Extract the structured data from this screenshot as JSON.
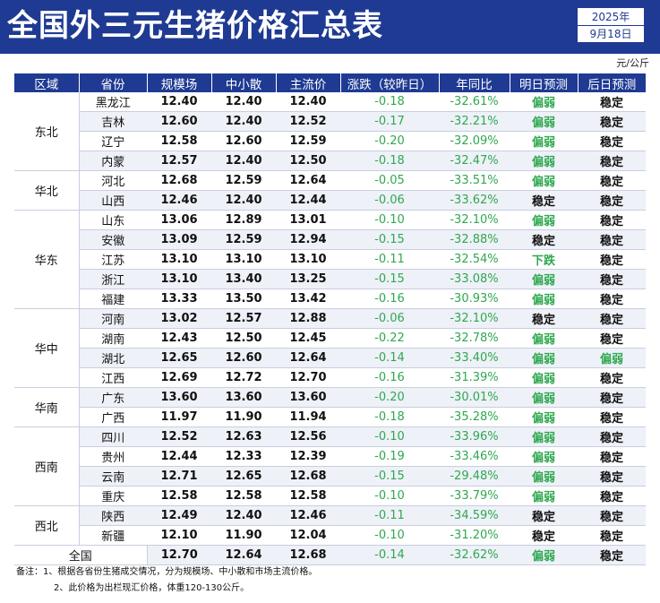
{
  "title": "全国外三元生猪价格汇总表",
  "date": {
    "year": "2025年",
    "day": "9月18日"
  },
  "unit": "元/公斤",
  "columns": [
    "区域",
    "省份",
    "规模场",
    "中小散",
    "主流价",
    "涨跌（较昨日）",
    "年同比",
    "明日预测",
    "后日预测"
  ],
  "regions": [
    {
      "name": "东北",
      "rows": [
        {
          "province": "黑龙江",
          "scale": "12.40",
          "small": "12.40",
          "main": "12.40",
          "change": "-0.18",
          "yoy": "-32.61%",
          "tomorrow": "偏弱",
          "after": "稳定"
        },
        {
          "province": "吉林",
          "scale": "12.60",
          "small": "12.40",
          "main": "12.52",
          "change": "-0.17",
          "yoy": "-32.21%",
          "tomorrow": "偏弱",
          "after": "稳定"
        },
        {
          "province": "辽宁",
          "scale": "12.58",
          "small": "12.60",
          "main": "12.59",
          "change": "-0.20",
          "yoy": "-32.09%",
          "tomorrow": "偏弱",
          "after": "稳定"
        },
        {
          "province": "内蒙",
          "scale": "12.57",
          "small": "12.40",
          "main": "12.50",
          "change": "-0.18",
          "yoy": "-32.47%",
          "tomorrow": "偏弱",
          "after": "稳定"
        }
      ]
    },
    {
      "name": "华北",
      "rows": [
        {
          "province": "河北",
          "scale": "12.68",
          "small": "12.59",
          "main": "12.64",
          "change": "-0.05",
          "yoy": "-33.51%",
          "tomorrow": "偏弱",
          "after": "稳定"
        },
        {
          "province": "山西",
          "scale": "12.46",
          "small": "12.40",
          "main": "12.44",
          "change": "-0.06",
          "yoy": "-33.62%",
          "tomorrow": "稳定",
          "after": "稳定"
        }
      ]
    },
    {
      "name": "华东",
      "rows": [
        {
          "province": "山东",
          "scale": "13.06",
          "small": "12.89",
          "main": "13.01",
          "change": "-0.10",
          "yoy": "-32.10%",
          "tomorrow": "偏弱",
          "after": "稳定"
        },
        {
          "province": "安徽",
          "scale": "13.09",
          "small": "12.59",
          "main": "12.94",
          "change": "-0.15",
          "yoy": "-32.88%",
          "tomorrow": "稳定",
          "after": "稳定"
        },
        {
          "province": "江苏",
          "scale": "13.10",
          "small": "13.10",
          "main": "13.10",
          "change": "-0.11",
          "yoy": "-32.54%",
          "tomorrow": "下跌",
          "after": "稳定"
        },
        {
          "province": "浙江",
          "scale": "13.10",
          "small": "13.40",
          "main": "13.25",
          "change": "-0.15",
          "yoy": "-33.08%",
          "tomorrow": "偏弱",
          "after": "稳定"
        },
        {
          "province": "福建",
          "scale": "13.33",
          "small": "13.50",
          "main": "13.42",
          "change": "-0.16",
          "yoy": "-30.93%",
          "tomorrow": "偏弱",
          "after": "稳定"
        }
      ]
    },
    {
      "name": "华中",
      "rows": [
        {
          "province": "河南",
          "scale": "13.02",
          "small": "12.57",
          "main": "12.88",
          "change": "-0.06",
          "yoy": "-32.10%",
          "tomorrow": "稳定",
          "after": "稳定"
        },
        {
          "province": "湖南",
          "scale": "12.43",
          "small": "12.50",
          "main": "12.45",
          "change": "-0.22",
          "yoy": "-32.78%",
          "tomorrow": "偏弱",
          "after": "稳定"
        },
        {
          "province": "湖北",
          "scale": "12.65",
          "small": "12.60",
          "main": "12.64",
          "change": "-0.14",
          "yoy": "-33.40%",
          "tomorrow": "偏弱",
          "after": "偏弱"
        },
        {
          "province": "江西",
          "scale": "12.69",
          "small": "12.72",
          "main": "12.70",
          "change": "-0.16",
          "yoy": "-31.39%",
          "tomorrow": "偏弱",
          "after": "稳定"
        }
      ]
    },
    {
      "name": "华南",
      "rows": [
        {
          "province": "广东",
          "scale": "13.60",
          "small": "13.60",
          "main": "13.60",
          "change": "-0.20",
          "yoy": "-30.01%",
          "tomorrow": "偏弱",
          "after": "稳定"
        },
        {
          "province": "广西",
          "scale": "11.97",
          "small": "11.90",
          "main": "11.94",
          "change": "-0.18",
          "yoy": "-35.28%",
          "tomorrow": "偏弱",
          "after": "稳定"
        }
      ]
    },
    {
      "name": "西南",
      "rows": [
        {
          "province": "四川",
          "scale": "12.52",
          "small": "12.63",
          "main": "12.56",
          "change": "-0.10",
          "yoy": "-33.96%",
          "tomorrow": "偏弱",
          "after": "稳定"
        },
        {
          "province": "贵州",
          "scale": "12.44",
          "small": "12.33",
          "main": "12.39",
          "change": "-0.19",
          "yoy": "-33.46%",
          "tomorrow": "偏弱",
          "after": "稳定"
        },
        {
          "province": "云南",
          "scale": "12.71",
          "small": "12.65",
          "main": "12.68",
          "change": "-0.15",
          "yoy": "-29.48%",
          "tomorrow": "偏弱",
          "after": "稳定"
        },
        {
          "province": "重庆",
          "scale": "12.58",
          "small": "12.58",
          "main": "12.58",
          "change": "-0.10",
          "yoy": "-33.79%",
          "tomorrow": "偏弱",
          "after": "稳定"
        }
      ]
    },
    {
      "name": "西北",
      "rows": [
        {
          "province": "陕西",
          "scale": "12.49",
          "small": "12.40",
          "main": "12.46",
          "change": "-0.11",
          "yoy": "-34.59%",
          "tomorrow": "稳定",
          "after": "稳定"
        },
        {
          "province": "新疆",
          "scale": "12.10",
          "small": "11.90",
          "main": "12.04",
          "change": "-0.10",
          "yoy": "-31.20%",
          "tomorrow": "稳定",
          "after": "稳定"
        }
      ]
    }
  ],
  "national": {
    "label": "全国",
    "scale": "12.70",
    "small": "12.64",
    "main": "12.68",
    "change": "-0.14",
    "yoy": "-32.62%",
    "tomorrow": "偏弱",
    "after": "稳定"
  },
  "notes": [
    "备注：1、根据各省份生猪成交情况，分为规模场、中小散和市场主流价格。",
    "2、此价格为出栏现汇价格，体重120-130公斤。"
  ],
  "colors": {
    "header": "#1f3a93",
    "green": "#2fa84f",
    "stripe": "#eef1f8"
  }
}
